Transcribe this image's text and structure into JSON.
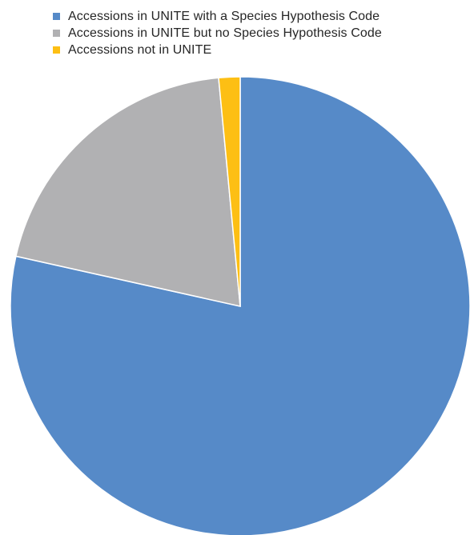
{
  "chart_data": {
    "type": "pie",
    "title": "",
    "start_angle": "12 o'clock",
    "direction": "clockwise",
    "legend_position": "top",
    "slices": [
      {
        "name": "Accessions in UNITE with a Species Hypothesis Code",
        "value": 78.5,
        "color": "#568ac8"
      },
      {
        "name": "Accessions in UNITE but no Species Hypothesis Code",
        "value": 20.0,
        "color": "#b1b1b3"
      },
      {
        "name": "Accessions not in UNITE",
        "value": 1.5,
        "color": "#fdbf14"
      }
    ]
  }
}
